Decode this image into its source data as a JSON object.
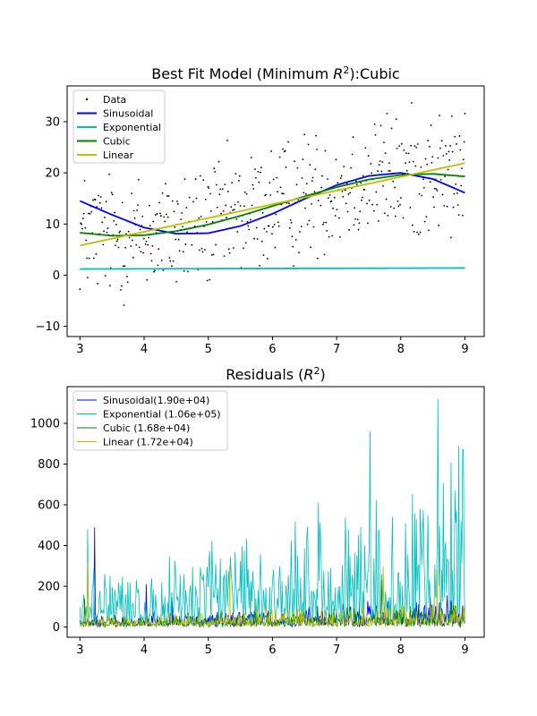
{
  "chart_data": [
    {
      "type": "scatter+line",
      "title": "Best Fit Model (Minimum R²):Cubic",
      "xlim": [
        2.8,
        9.3
      ],
      "ylim": [
        -12,
        37
      ],
      "xticks": [
        3,
        4,
        5,
        6,
        7,
        8,
        9
      ],
      "yticks": [
        -10,
        0,
        10,
        20,
        30
      ],
      "legend_position": "upper-left",
      "colors": {
        "data": "#000000",
        "sinusoidal": "#0000ff",
        "exponential": "#00bfbf",
        "cubic": "#008000",
        "linear": "#bfbf00"
      },
      "legend": [
        "Data",
        "Sinusoidal",
        "Exponential",
        "Cubic",
        "Linear"
      ],
      "series": [
        {
          "name": "Data",
          "kind": "scatter",
          "x_range": [
            3,
            9
          ],
          "count": 500
        },
        {
          "name": "Sinusoidal",
          "kind": "line",
          "x": [
            3.0,
            3.5,
            4.0,
            4.5,
            5.0,
            5.5,
            6.0,
            6.5,
            7.0,
            7.5,
            8.0,
            8.5,
            9.0
          ],
          "y": [
            14.5,
            11.8,
            9.3,
            8.1,
            8.2,
            9.6,
            12.0,
            14.9,
            17.6,
            19.4,
            20.0,
            18.8,
            16.1
          ]
        },
        {
          "name": "Exponential",
          "kind": "line",
          "x": [
            3.0,
            9.0
          ],
          "y": [
            1.2,
            1.4
          ]
        },
        {
          "name": "Cubic",
          "kind": "line",
          "x": [
            3.0,
            3.5,
            4.0,
            4.5,
            5.0,
            5.5,
            6.0,
            6.5,
            7.0,
            7.5,
            8.0,
            8.5,
            9.0
          ],
          "y": [
            8.3,
            7.7,
            7.8,
            8.6,
            9.9,
            11.6,
            13.5,
            15.4,
            17.2,
            18.7,
            19.6,
            19.8,
            19.3
          ]
        },
        {
          "name": "Linear",
          "kind": "line",
          "x": [
            3.0,
            9.0
          ],
          "y": [
            5.8,
            21.9
          ]
        }
      ]
    },
    {
      "type": "line",
      "title": "Residuals (R²)",
      "xlim": [
        2.8,
        9.3
      ],
      "ylim": [
        -50,
        1180
      ],
      "xticks": [
        3,
        4,
        5,
        6,
        7,
        8,
        9
      ],
      "yticks": [
        0,
        200,
        400,
        600,
        800,
        1000
      ],
      "legend_position": "upper-left",
      "series": [
        {
          "name": "Sinusoidal(1.90e+04)",
          "color": "#0000ff",
          "baseline": 40,
          "spread": 110,
          "peaks": [
            [
              3.23,
              490
            ],
            [
              4.03,
              210
            ],
            [
              4.43,
              170
            ]
          ]
        },
        {
          "name": "Exponential (1.06e+05)",
          "color": "#00bfbf",
          "baseline": 120,
          "spread": 550,
          "peaks": [
            [
              3.12,
              480
            ],
            [
              7.52,
              960
            ],
            [
              8.58,
              1120
            ],
            [
              8.9,
              890
            ],
            [
              8.97,
              870
            ]
          ]
        },
        {
          "name": "Cubic (1.68e+04)",
          "color": "#008000",
          "baseline": 30,
          "spread": 90,
          "peaks": [
            [
              3.07,
              140
            ],
            [
              7.7,
              230
            ]
          ]
        },
        {
          "name": "Linear (1.72e+04)",
          "color": "#bfbf00",
          "baseline": 35,
          "spread": 100,
          "peaks": [
            [
              3.12,
              320
            ],
            [
              5.33,
              300
            ],
            [
              7.73,
              300
            ],
            [
              8.57,
              280
            ]
          ]
        }
      ]
    }
  ],
  "chart_titles": {
    "top_prefix": "Best Fit Model (Minimum ",
    "top_math": "R",
    "top_sup": "2",
    "top_suffix": "):Cubic",
    "bottom_prefix": "Residuals (",
    "bottom_math": "R",
    "bottom_sup": "2",
    "bottom_suffix": ")"
  }
}
